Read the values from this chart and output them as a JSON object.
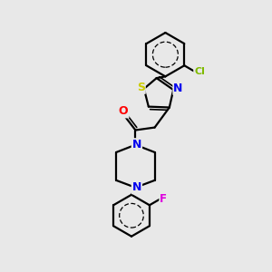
{
  "background_color": "#e8e8e8",
  "bond_color": "#000000",
  "atom_colors": {
    "S": "#cccc00",
    "N": "#0000ee",
    "O": "#ff0000",
    "Cl": "#7fba00",
    "F": "#dd00dd"
  },
  "figsize": [
    3.0,
    3.0
  ],
  "dpi": 100
}
